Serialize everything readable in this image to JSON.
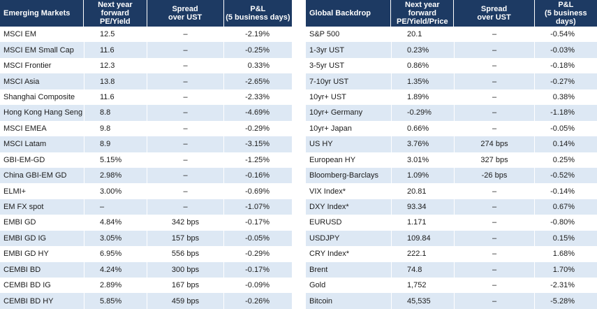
{
  "tables": [
    {
      "headers": [
        [
          "Emerging Markets"
        ],
        [
          "Next year forward",
          "PE/Yield"
        ],
        [
          "Spread",
          "over UST"
        ],
        [
          "P&L",
          "(5 business days)"
        ]
      ],
      "rows": [
        [
          "MSCI EM",
          "12.5",
          "–",
          "-2.19%"
        ],
        [
          "MSCI EM Small Cap",
          "11.6",
          "–",
          "-0.25%"
        ],
        [
          "MSCI Frontier",
          "12.3",
          "–",
          "0.33%"
        ],
        [
          "MSCI Asia",
          "13.8",
          "–",
          "-2.65%"
        ],
        [
          "Shanghai Composite",
          "11.6",
          "–",
          "-2.33%"
        ],
        [
          "Hong Kong Hang Seng",
          "8.8",
          "–",
          "-4.69%"
        ],
        [
          "MSCI EMEA",
          "9.8",
          "–",
          "-0.29%"
        ],
        [
          "MSCI Latam",
          "8.9",
          "–",
          "-3.15%"
        ],
        [
          "GBI-EM-GD",
          "5.15%",
          "–",
          "-1.25%"
        ],
        [
          "China GBI-EM GD",
          "2.98%",
          "–",
          "-0.16%"
        ],
        [
          "ELMI+",
          "3.00%",
          "–",
          "-0.69%"
        ],
        [
          "EM FX spot",
          "–",
          "–",
          "-1.07%"
        ],
        [
          "EMBI GD",
          "4.84%",
          "342 bps",
          "-0.17%"
        ],
        [
          "EMBI GD IG",
          "3.05%",
          "157 bps",
          "-0.05%"
        ],
        [
          "EMBI GD HY",
          "6.95%",
          "556 bps",
          "-0.29%"
        ],
        [
          "CEMBI BD",
          "4.24%",
          "300 bps",
          "-0.17%"
        ],
        [
          "CEMBI BD IG",
          "2.89%",
          "167 bps",
          "-0.09%"
        ],
        [
          "CEMBI BD HY",
          "5.85%",
          "459 bps",
          "-0.26%"
        ]
      ]
    },
    {
      "headers": [
        [
          "Global Backdrop"
        ],
        [
          "Next year forward",
          "PE/Yield/Price"
        ],
        [
          "Spread",
          "over UST"
        ],
        [
          "P&L",
          "(5 business days)"
        ]
      ],
      "rows": [
        [
          "S&P 500",
          "20.1",
          "–",
          "-0.54%"
        ],
        [
          "1-3yr UST",
          "0.23%",
          "–",
          "-0.03%"
        ],
        [
          "3-5yr UST",
          "0.86%",
          "–",
          "-0.18%"
        ],
        [
          "7-10yr UST",
          "1.35%",
          "–",
          "-0.27%"
        ],
        [
          "10yr+ UST",
          "1.89%",
          "–",
          "0.38%"
        ],
        [
          "10yr+ Germany",
          "-0.29%",
          "–",
          "-1.18%"
        ],
        [
          "10yr+ Japan",
          "0.66%",
          "–",
          "-0.05%"
        ],
        [
          "US HY",
          "3.76%",
          "274 bps",
          "0.14%"
        ],
        [
          "European HY",
          "3.01%",
          "327 bps",
          "0.25%"
        ],
        [
          "Bloomberg-Barclays",
          "1.09%",
          "-26 bps",
          "-0.52%"
        ],
        [
          "VIX Index*",
          "20.81",
          "–",
          "-0.14%"
        ],
        [
          "DXY Index*",
          "93.34",
          "–",
          "0.67%"
        ],
        [
          "EURUSD",
          "1.171",
          "–",
          "-0.80%"
        ],
        [
          "USDJPY",
          "109.84",
          "–",
          "0.15%"
        ],
        [
          "CRY Index*",
          "222.1",
          "–",
          "1.68%"
        ],
        [
          "Brent",
          "74.8",
          "–",
          "1.70%"
        ],
        [
          "Gold",
          "1,752",
          "–",
          "-2.31%"
        ],
        [
          "Bitcoin",
          "45,535",
          "–",
          "-5.28%"
        ]
      ]
    }
  ]
}
